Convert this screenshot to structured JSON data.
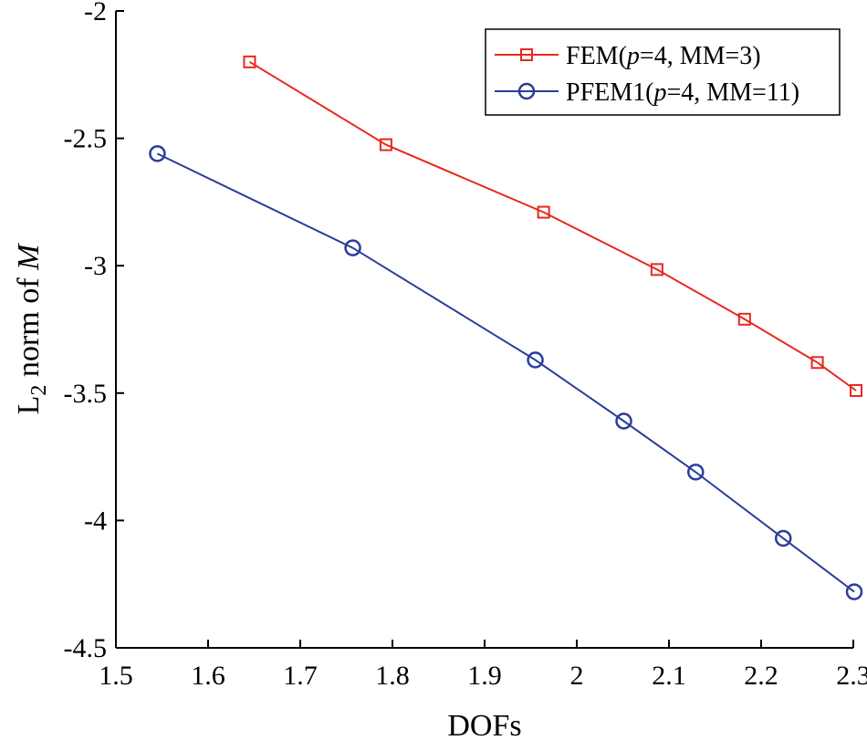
{
  "chart_data": {
    "type": "line",
    "title": "",
    "xlabel": "DOFs",
    "ylabel": {
      "prefix": "L",
      "subscript": "2",
      "middle": " norm of ",
      "italic": "M"
    },
    "xlim": [
      1.5,
      2.3
    ],
    "ylim": [
      -4.5,
      -2
    ],
    "xticks": [
      1.5,
      1.6,
      1.7,
      1.8,
      1.9,
      2,
      2.1,
      2.2,
      2.3
    ],
    "xtick_labels": [
      "1.5",
      "1.6",
      "1.7",
      "1.8",
      "1.9",
      "2",
      "2.1",
      "2.2",
      "2.3"
    ],
    "yticks": [
      -2,
      -2.5,
      -3,
      -3.5,
      -4,
      -4.5
    ],
    "ytick_labels": [
      "-2",
      "-2.5",
      "-3",
      "-3.5",
      "-4",
      "-4.5"
    ],
    "grid": false,
    "legend_position": "top-right",
    "series": [
      {
        "name": "FEM(p=4, MM=3)",
        "label_parts": {
          "before": "FEM(",
          "italic": "p",
          "after": "=4, MM=3)"
        },
        "color": "#e8281e",
        "marker": "square",
        "x": [
          1.645,
          1.793,
          1.964,
          2.087,
          2.182,
          2.261,
          2.303
        ],
        "y": [
          -2.2,
          -2.525,
          -2.79,
          -3.015,
          -3.21,
          -3.38,
          -3.49
        ]
      },
      {
        "name": "PFEM1(p=4, MM=11)",
        "label_parts": {
          "before": "PFEM1(",
          "italic": "p",
          "after": "=4, MM=11)"
        },
        "color": "#2b3d9a",
        "marker": "circle",
        "x": [
          1.545,
          1.757,
          1.955,
          2.051,
          2.129,
          2.224,
          2.301
        ],
        "y": [
          -2.56,
          -2.93,
          -3.37,
          -3.61,
          -3.81,
          -4.07,
          -4.28
        ]
      }
    ]
  }
}
